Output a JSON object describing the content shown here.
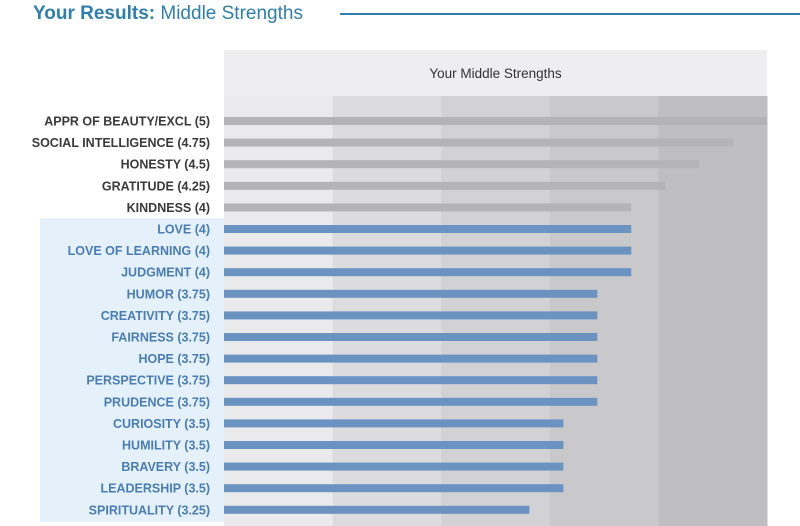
{
  "header": {
    "title_bold": "Your Results:",
    "title_rest": " Middle Strengths"
  },
  "colors": {
    "accent": "#2e7fae",
    "bar_gray": "#b4b4b8",
    "bar_blue": "#6a93c2",
    "label_gray": "#3a3a3a",
    "label_blue": "#4a7db5",
    "highlight_bg": "#e4f1fa"
  },
  "chart_data": {
    "type": "bar",
    "orientation": "horizontal",
    "title": "Your Middle Strengths",
    "xlim": [
      1,
      5
    ],
    "grid": "alternating bands",
    "categories": [
      "APPR OF BEAUTY/EXCL (5)",
      "SOCIAL INTELLIGENCE (4.75)",
      "HONESTY (4.5)",
      "GRATITUDE (4.25)",
      "KINDNESS (4)",
      "LOVE (4)",
      "LOVE OF LEARNING (4)",
      "JUDGMENT (4)",
      "HUMOR (3.75)",
      "CREATIVITY (3.75)",
      "FAIRNESS (3.75)",
      "HOPE (3.75)",
      "PERSPECTIVE (3.75)",
      "PRUDENCE (3.75)",
      "CURIOSITY (3.5)",
      "HUMILITY (3.5)",
      "BRAVERY (3.5)",
      "LEADERSHIP (3.5)",
      "SPIRITUALITY (3.25)"
    ],
    "values": [
      5,
      4.75,
      4.5,
      4.25,
      4,
      4,
      4,
      4,
      3.75,
      3.75,
      3.75,
      3.75,
      3.75,
      3.75,
      3.5,
      3.5,
      3.5,
      3.5,
      3.25
    ],
    "highlighted": [
      false,
      false,
      false,
      false,
      false,
      true,
      true,
      true,
      true,
      true,
      true,
      true,
      true,
      true,
      true,
      true,
      true,
      true,
      true
    ]
  }
}
